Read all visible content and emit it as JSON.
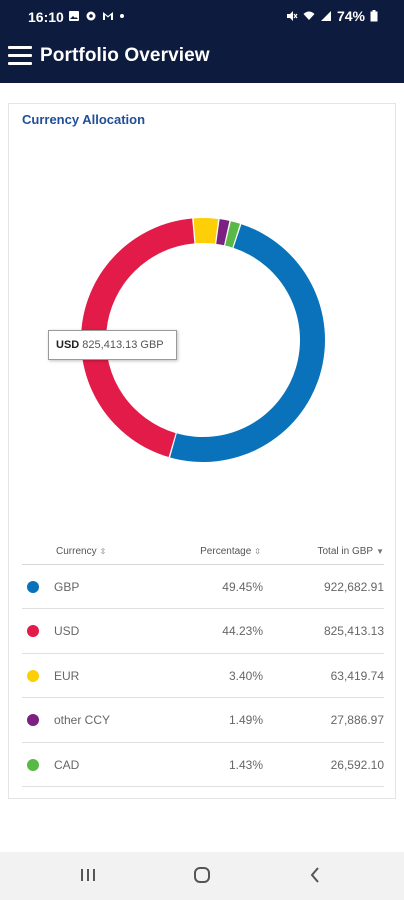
{
  "status": {
    "time": "16:10",
    "battery": "74%"
  },
  "app": {
    "title": "Portfolio Overview"
  },
  "card": {
    "title": "Currency Allocation"
  },
  "tooltip": {
    "currency": "USD",
    "value": "825,413.13 GBP"
  },
  "table": {
    "headers": {
      "currency": "Currency",
      "percentage": "Percentage",
      "total": "Total in GBP"
    },
    "rows": [
      {
        "currency": "GBP",
        "percentage": "49.45%",
        "total": "922,682.91",
        "color": "#0a72ba"
      },
      {
        "currency": "USD",
        "percentage": "44.23%",
        "total": "825,413.13",
        "color": "#e21b48"
      },
      {
        "currency": "EUR",
        "percentage": "3.40%",
        "total": "63,419.74",
        "color": "#fdcf07"
      },
      {
        "currency": "other CCY",
        "percentage": "1.49%",
        "total": "27,886.97",
        "color": "#7a2181"
      },
      {
        "currency": "CAD",
        "percentage": "1.43%",
        "total": "26,592.10",
        "color": "#58b947"
      }
    ]
  },
  "chart_data": {
    "type": "pie",
    "categories": [
      "GBP",
      "USD",
      "EUR",
      "other CCY",
      "CAD"
    ],
    "values": [
      49.45,
      44.23,
      3.4,
      1.49,
      1.43
    ],
    "totals_gbp": [
      922682.91,
      825413.13,
      63419.74,
      27886.97,
      26592.1
    ],
    "colors": [
      "#0a72ba",
      "#e21b48",
      "#fdcf07",
      "#7a2181",
      "#58b947"
    ],
    "start_category": "GBP",
    "title": "Currency Allocation"
  }
}
